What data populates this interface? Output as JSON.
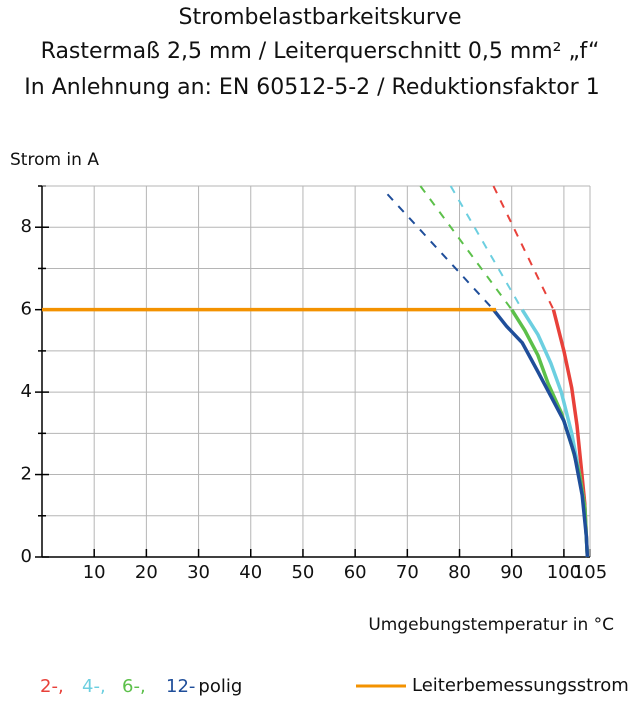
{
  "chart_data": {
    "type": "line",
    "title": "Strombelastbarkeitskurve",
    "subtitle": "Rastermaß 2,5 mm / Leiterquerschnitt 0,5 mm² „f“",
    "subtitle2": "In Anlehnung an: EN 60512-5-2 / Reduktionsfaktor 1",
    "y_label": "Strom in A",
    "x_label": "Umgebungstemperatur in °C",
    "xlim": [
      0,
      105
    ],
    "ylim": [
      0,
      9
    ],
    "xticks": [
      10,
      20,
      30,
      40,
      50,
      60,
      70,
      80,
      90,
      100,
      105
    ],
    "yticks": [
      0,
      2,
      4,
      6,
      8
    ],
    "minor_yticks": [
      1,
      3,
      5,
      7,
      9
    ],
    "grid": true,
    "legend_suffix": "polig",
    "series": [
      {
        "name": "2-,",
        "color": "#e8413a",
        "x": [
          98,
          100,
          101.5,
          102.5,
          103.3,
          104,
          104.5
        ],
        "values": [
          6,
          5,
          4.1,
          3.2,
          2.2,
          1.3,
          0
        ],
        "extrapolated": {
          "x": [
            86.5,
            98
          ],
          "values": [
            9,
            6
          ]
        }
      },
      {
        "name": "4-,",
        "color": "#6ccfe0",
        "x": [
          92,
          95,
          97.5,
          99.5,
          101.5,
          103,
          104,
          104.5
        ],
        "values": [
          6,
          5.4,
          4.7,
          4,
          3,
          2,
          1.2,
          0
        ],
        "extrapolated": {
          "x": [
            78.3,
            92
          ],
          "values": [
            9,
            6
          ]
        }
      },
      {
        "name": "6-,",
        "color": "#5cc04a",
        "x": [
          90,
          92.5,
          95,
          97,
          99.5,
          101.5,
          103,
          104,
          104.5
        ],
        "values": [
          6,
          5.5,
          4.9,
          4.2,
          3.5,
          2.7,
          2,
          1.2,
          0
        ],
        "extrapolated": {
          "x": [
            72.5,
            90
          ],
          "values": [
            9,
            6
          ]
        }
      },
      {
        "name": "12-",
        "color": "#1f4e9a",
        "x": [
          86.5,
          89,
          92,
          95,
          97.5,
          100,
          102,
          103.5,
          104.3,
          104.5
        ],
        "values": [
          6,
          5.6,
          5.2,
          4.5,
          3.9,
          3.3,
          2.5,
          1.5,
          0.5,
          0
        ],
        "extrapolated": {
          "x": [
            66.2,
            86.5
          ],
          "values": [
            8.8,
            6
          ]
        }
      },
      {
        "name": "Leiterbemessungsstrom",
        "color": "#f39200",
        "x": [
          0,
          87
        ],
        "values": [
          6,
          6
        ]
      }
    ]
  }
}
